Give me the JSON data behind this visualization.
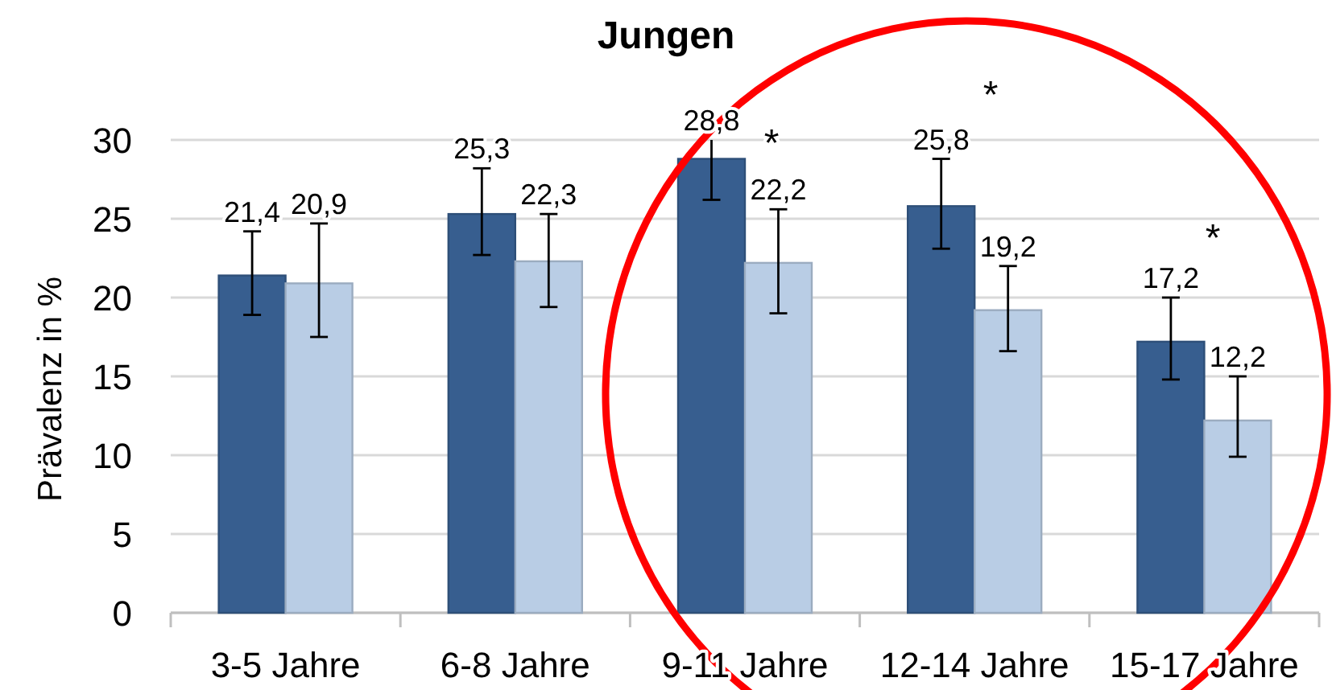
{
  "chart_data": {
    "type": "bar",
    "title": "Jungen",
    "ylabel": "Prävalenz in %",
    "categories": [
      "3-5 Jahre",
      "6-8 Jahre",
      "9-11 Jahre",
      "12-14 Jahre",
      "15-17 Jahre"
    ],
    "series": [
      {
        "color": "#375e8f",
        "values": [
          21.4,
          25.3,
          28.8,
          25.8,
          17.2
        ],
        "errors": [
          [
            18.9,
            24.2
          ],
          [
            22.7,
            28.2
          ],
          [
            26.2,
            30
          ],
          [
            23.1,
            28.8
          ],
          [
            14.8,
            20.0
          ]
        ],
        "value_labels": [
          "21,4",
          "25,3",
          "28,8",
          "25,8",
          "17,2"
        ]
      },
      {
        "color": "#b9cde5",
        "values": [
          20.9,
          22.3,
          22.2,
          19.2,
          12.2
        ],
        "errors": [
          [
            17.5,
            24.7
          ],
          [
            19.4,
            25.3
          ],
          [
            19.0,
            25.6
          ],
          [
            16.6,
            22.0
          ],
          [
            9.9,
            15.0
          ]
        ],
        "value_labels": [
          "20,9",
          "22,3",
          "22,2",
          "19,2",
          "12,2"
        ]
      }
    ],
    "ylim": [
      0,
      30
    ],
    "yticks": [
      0,
      5,
      10,
      15,
      20,
      25,
      30
    ],
    "grid": "y",
    "annotations": [
      "*",
      "*",
      "*"
    ]
  }
}
